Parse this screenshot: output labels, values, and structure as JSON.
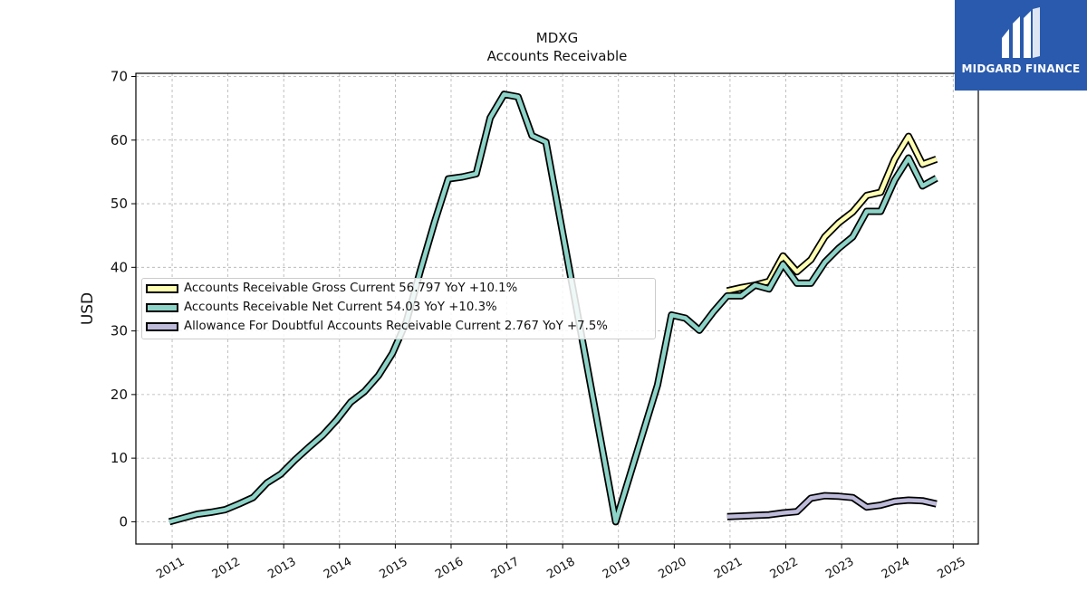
{
  "chart_data": {
    "type": "line",
    "title": "MDXG",
    "subtitle": "Accounts Receivable",
    "ylabel": "USD",
    "xlabel": "",
    "ylim": [
      -3.5,
      70.5
    ],
    "xlim": [
      2010.35,
      2025.45
    ],
    "yticks": [
      0,
      10,
      20,
      30,
      40,
      50,
      60,
      70
    ],
    "xticks": [
      2011,
      2012,
      2013,
      2014,
      2015,
      2016,
      2017,
      2018,
      2019,
      2020,
      2021,
      2022,
      2023,
      2024,
      2025
    ],
    "grid": true,
    "legend_position": "center-left",
    "series": [
      {
        "name": "Accounts Receivable Gross Current",
        "legend_label": "Accounts Receivable Gross Current  56.797 YoY +10.1%",
        "color": "#ffffb3",
        "points": [
          [
            2020.95,
            36.3
          ],
          [
            2021.2,
            36.8
          ],
          [
            2021.45,
            37.2
          ],
          [
            2021.7,
            37.8
          ],
          [
            2021.95,
            41.8
          ],
          [
            2022.2,
            39.3
          ],
          [
            2022.45,
            41.2
          ],
          [
            2022.7,
            44.8
          ],
          [
            2022.95,
            47.0
          ],
          [
            2023.2,
            48.7
          ],
          [
            2023.45,
            51.3
          ],
          [
            2023.7,
            51.8
          ],
          [
            2023.95,
            57.0
          ],
          [
            2024.2,
            60.6
          ],
          [
            2024.45,
            56.2
          ],
          [
            2024.7,
            57.0
          ]
        ]
      },
      {
        "name": "Accounts Receivable Net Current",
        "legend_label": "Accounts Receivable Net Current  54.03 YoY +10.3%",
        "color": "#8dd3c7",
        "points": [
          [
            2010.95,
            0.0
          ],
          [
            2011.2,
            0.6
          ],
          [
            2011.45,
            1.2
          ],
          [
            2011.7,
            1.5
          ],
          [
            2011.95,
            1.9
          ],
          [
            2012.2,
            2.8
          ],
          [
            2012.45,
            3.8
          ],
          [
            2012.7,
            6.1
          ],
          [
            2012.95,
            7.5
          ],
          [
            2013.2,
            9.7
          ],
          [
            2013.45,
            11.7
          ],
          [
            2013.7,
            13.6
          ],
          [
            2013.95,
            16.0
          ],
          [
            2014.2,
            18.8
          ],
          [
            2014.45,
            20.5
          ],
          [
            2014.7,
            23.0
          ],
          [
            2014.95,
            26.5
          ],
          [
            2015.2,
            31.5
          ],
          [
            2015.45,
            39.5
          ],
          [
            2015.7,
            47.0
          ],
          [
            2015.95,
            53.9
          ],
          [
            2016.2,
            54.2
          ],
          [
            2016.45,
            54.7
          ],
          [
            2016.7,
            63.5
          ],
          [
            2016.95,
            67.2
          ],
          [
            2017.2,
            66.8
          ],
          [
            2017.45,
            60.7
          ],
          [
            2017.7,
            59.7
          ],
          [
            2018.95,
            0.0
          ],
          [
            2019.7,
            21.5
          ],
          [
            2019.95,
            32.5
          ],
          [
            2020.2,
            32.0
          ],
          [
            2020.45,
            30.1
          ],
          [
            2020.7,
            33.0
          ],
          [
            2020.95,
            35.5
          ],
          [
            2021.2,
            35.5
          ],
          [
            2021.45,
            37.2
          ],
          [
            2021.7,
            36.6
          ],
          [
            2021.95,
            40.5
          ],
          [
            2022.2,
            37.5
          ],
          [
            2022.45,
            37.5
          ],
          [
            2022.7,
            40.8
          ],
          [
            2022.95,
            43.0
          ],
          [
            2023.2,
            44.8
          ],
          [
            2023.45,
            48.8
          ],
          [
            2023.7,
            48.8
          ],
          [
            2023.95,
            53.7
          ],
          [
            2024.2,
            57.2
          ],
          [
            2024.45,
            52.8
          ],
          [
            2024.7,
            54.0
          ]
        ]
      },
      {
        "name": "Allowance For Doubtful Accounts Receivable Current",
        "legend_label": "Allowance For Doubtful Accounts Receivable Current  2.767 YoY +7.5%",
        "color": "#bebada",
        "points": [
          [
            2020.95,
            0.8
          ],
          [
            2021.2,
            0.9
          ],
          [
            2021.45,
            1.0
          ],
          [
            2021.7,
            1.1
          ],
          [
            2021.95,
            1.4
          ],
          [
            2022.2,
            1.6
          ],
          [
            2022.45,
            3.7
          ],
          [
            2022.7,
            4.1
          ],
          [
            2022.95,
            4.0
          ],
          [
            2023.2,
            3.8
          ],
          [
            2023.45,
            2.3
          ],
          [
            2023.7,
            2.6
          ],
          [
            2023.95,
            3.2
          ],
          [
            2024.2,
            3.4
          ],
          [
            2024.45,
            3.3
          ],
          [
            2024.7,
            2.8
          ]
        ]
      }
    ]
  },
  "logo": {
    "brand": "MIDGARD FINANCE",
    "color": "#2a5aad"
  }
}
